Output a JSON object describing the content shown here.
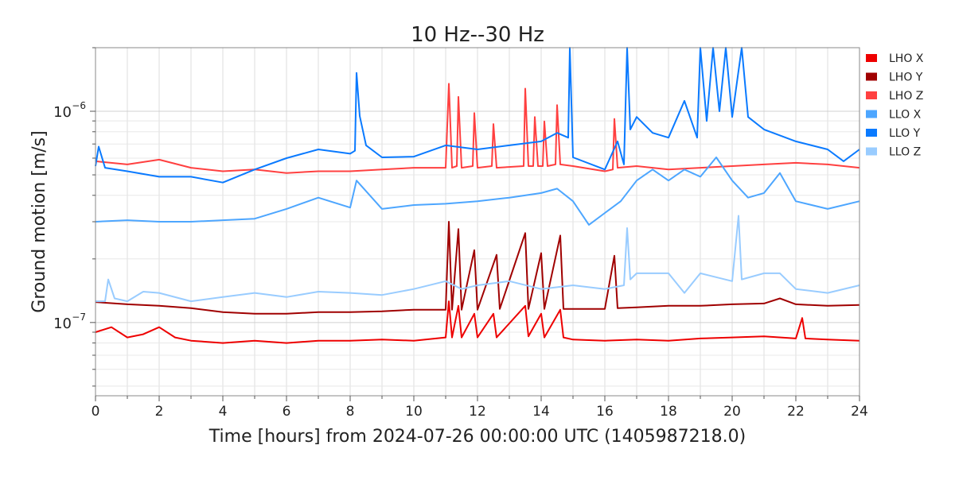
{
  "chart_data": {
    "type": "line",
    "title": "10 Hz--30 Hz",
    "xlabel": "Time [hours] from 2024-07-26 00:00:00 UTC (1405987218.0)",
    "ylabel": "Ground motion [m/s]",
    "xlim": [
      0,
      24
    ],
    "ylim": [
      4.5e-08,
      2e-06
    ],
    "yscale": "log",
    "grid": true,
    "legend_placement": "outside-right-top",
    "x_ticks": [
      "0",
      "2",
      "4",
      "6",
      "8",
      "10",
      "12",
      "14",
      "16",
      "18",
      "20",
      "22",
      "24"
    ],
    "y_ticks": [
      {
        "value": 1e-06,
        "base": "10",
        "exp": "−6"
      },
      {
        "value": 1e-07,
        "base": "10",
        "exp": "−7"
      }
    ],
    "values_unit_scale": 1e-07,
    "series": [
      {
        "name": "LHO X",
        "color": "#ee0000",
        "points": [
          [
            0,
            0.9
          ],
          [
            0.5,
            0.95
          ],
          [
            1,
            0.85
          ],
          [
            1.5,
            0.88
          ],
          [
            2,
            0.95
          ],
          [
            2.5,
            0.85
          ],
          [
            3,
            0.82
          ],
          [
            4,
            0.8
          ],
          [
            5,
            0.82
          ],
          [
            6,
            0.8
          ],
          [
            7,
            0.82
          ],
          [
            8,
            0.82
          ],
          [
            9,
            0.83
          ],
          [
            10,
            0.82
          ],
          [
            11,
            0.85
          ],
          [
            11.1,
            1.26
          ],
          [
            11.2,
            0.85
          ],
          [
            11.4,
            1.2
          ],
          [
            11.5,
            0.85
          ],
          [
            11.9,
            1.1
          ],
          [
            12,
            0.85
          ],
          [
            12.5,
            1.1
          ],
          [
            12.6,
            0.85
          ],
          [
            13.5,
            1.2
          ],
          [
            13.6,
            0.86
          ],
          [
            14.0,
            1.1
          ],
          [
            14.1,
            0.85
          ],
          [
            14.6,
            1.15
          ],
          [
            14.7,
            0.85
          ],
          [
            15,
            0.83
          ],
          [
            16,
            0.82
          ],
          [
            17,
            0.83
          ],
          [
            18,
            0.82
          ],
          [
            19,
            0.84
          ],
          [
            20,
            0.85
          ],
          [
            21,
            0.86
          ],
          [
            22,
            0.84
          ],
          [
            22.2,
            1.05
          ],
          [
            22.3,
            0.84
          ],
          [
            23,
            0.83
          ],
          [
            24,
            0.82
          ]
        ]
      },
      {
        "name": "LHO Y",
        "color": "#a00000",
        "points": [
          [
            0,
            1.25
          ],
          [
            1,
            1.22
          ],
          [
            2,
            1.2
          ],
          [
            3,
            1.17
          ],
          [
            4,
            1.12
          ],
          [
            5,
            1.1
          ],
          [
            6,
            1.1
          ],
          [
            7,
            1.12
          ],
          [
            8,
            1.12
          ],
          [
            9,
            1.13
          ],
          [
            10,
            1.15
          ],
          [
            11,
            1.15
          ],
          [
            11.1,
            3.0
          ],
          [
            11.2,
            1.15
          ],
          [
            11.4,
            2.77
          ],
          [
            11.5,
            1.15
          ],
          [
            11.9,
            2.2
          ],
          [
            12,
            1.15
          ],
          [
            12.6,
            2.09
          ],
          [
            12.7,
            1.16
          ],
          [
            13.5,
            2.65
          ],
          [
            13.6,
            1.16
          ],
          [
            14.0,
            2.13
          ],
          [
            14.1,
            1.16
          ],
          [
            14.6,
            2.58
          ],
          [
            14.7,
            1.16
          ],
          [
            15,
            1.16
          ],
          [
            16,
            1.16
          ],
          [
            16.3,
            2.07
          ],
          [
            16.4,
            1.17
          ],
          [
            17,
            1.18
          ],
          [
            18,
            1.2
          ],
          [
            19,
            1.2
          ],
          [
            20,
            1.22
          ],
          [
            21,
            1.23
          ],
          [
            21.5,
            1.3
          ],
          [
            22,
            1.22
          ],
          [
            23,
            1.2
          ],
          [
            24,
            1.21
          ]
        ]
      },
      {
        "name": "LHO Z",
        "color": "#ff4040",
        "points": [
          [
            0,
            5.8
          ],
          [
            1,
            5.6
          ],
          [
            2,
            5.9
          ],
          [
            3,
            5.4
          ],
          [
            4,
            5.2
          ],
          [
            5,
            5.3
          ],
          [
            6,
            5.1
          ],
          [
            7,
            5.2
          ],
          [
            8,
            5.2
          ],
          [
            9,
            5.3
          ],
          [
            10,
            5.4
          ],
          [
            11.0,
            5.4
          ],
          [
            11.1,
            13.5
          ],
          [
            11.2,
            5.4
          ],
          [
            11.35,
            5.5
          ],
          [
            11.4,
            11.7
          ],
          [
            11.5,
            5.4
          ],
          [
            11.85,
            5.5
          ],
          [
            11.9,
            9.8
          ],
          [
            12.0,
            5.4
          ],
          [
            12.45,
            5.5
          ],
          [
            12.5,
            8.7
          ],
          [
            12.6,
            5.4
          ],
          [
            13.45,
            5.5
          ],
          [
            13.5,
            12.8
          ],
          [
            13.6,
            5.5
          ],
          [
            13.75,
            5.5
          ],
          [
            13.8,
            9.4
          ],
          [
            13.9,
            5.5
          ],
          [
            14.05,
            5.5
          ],
          [
            14.1,
            8.95
          ],
          [
            14.2,
            5.5
          ],
          [
            14.45,
            5.6
          ],
          [
            14.5,
            10.7
          ],
          [
            14.6,
            5.6
          ],
          [
            15,
            5.5
          ],
          [
            16,
            5.2
          ],
          [
            16.25,
            5.3
          ],
          [
            16.3,
            9.2
          ],
          [
            16.4,
            5.4
          ],
          [
            17,
            5.5
          ],
          [
            18,
            5.3
          ],
          [
            19,
            5.4
          ],
          [
            20,
            5.5
          ],
          [
            21,
            5.6
          ],
          [
            22,
            5.7
          ],
          [
            23,
            5.6
          ],
          [
            24,
            5.4
          ]
        ]
      },
      {
        "name": "LLO X",
        "color": "#4da6ff",
        "points": [
          [
            0,
            3.0
          ],
          [
            1,
            3.05
          ],
          [
            2,
            3.0
          ],
          [
            3,
            3.0
          ],
          [
            4,
            3.05
          ],
          [
            5,
            3.1
          ],
          [
            6,
            3.45
          ],
          [
            7,
            3.9
          ],
          [
            8,
            3.5
          ],
          [
            8.2,
            4.7
          ],
          [
            9,
            3.45
          ],
          [
            10,
            3.6
          ],
          [
            11,
            3.65
          ],
          [
            12,
            3.75
          ],
          [
            13,
            3.9
          ],
          [
            14,
            4.1
          ],
          [
            14.5,
            4.3
          ],
          [
            15,
            3.75
          ],
          [
            15.5,
            2.9
          ],
          [
            16,
            3.3
          ],
          [
            16.5,
            3.75
          ],
          [
            17,
            4.7
          ],
          [
            17.5,
            5.3
          ],
          [
            18,
            4.7
          ],
          [
            18.5,
            5.3
          ],
          [
            19,
            4.9
          ],
          [
            19.5,
            6.05
          ],
          [
            20,
            4.7
          ],
          [
            20.5,
            3.9
          ],
          [
            21,
            4.1
          ],
          [
            21.5,
            5.1
          ],
          [
            22,
            3.75
          ],
          [
            23,
            3.45
          ],
          [
            24,
            3.75
          ]
        ]
      },
      {
        "name": "LLO Y",
        "color": "#0a7aff",
        "points": [
          [
            0,
            5.5
          ],
          [
            0.1,
            6.8
          ],
          [
            0.3,
            5.4
          ],
          [
            1,
            5.2
          ],
          [
            2,
            4.9
          ],
          [
            3,
            4.9
          ],
          [
            4,
            4.6
          ],
          [
            5,
            5.3
          ],
          [
            6,
            6.0
          ],
          [
            7,
            6.6
          ],
          [
            8,
            6.3
          ],
          [
            8.15,
            6.5
          ],
          [
            8.2,
            15.2
          ],
          [
            8.3,
            9.5
          ],
          [
            8.5,
            6.9
          ],
          [
            9,
            6.05
          ],
          [
            10,
            6.1
          ],
          [
            11,
            6.9
          ],
          [
            12,
            6.6
          ],
          [
            13,
            6.9
          ],
          [
            14,
            7.2
          ],
          [
            14.5,
            7.9
          ],
          [
            14.85,
            7.5
          ],
          [
            14.9,
            20.6
          ],
          [
            15,
            6.05
          ],
          [
            16,
            5.3
          ],
          [
            16.4,
            7.2
          ],
          [
            16.6,
            5.6
          ],
          [
            16.7,
            20.6
          ],
          [
            16.8,
            8.2
          ],
          [
            17,
            9.4
          ],
          [
            17.5,
            7.9
          ],
          [
            18,
            7.5
          ],
          [
            18.5,
            11.2
          ],
          [
            18.9,
            7.5
          ],
          [
            19,
            20.6
          ],
          [
            19.2,
            9
          ],
          [
            19.4,
            20.6
          ],
          [
            19.6,
            10
          ],
          [
            19.8,
            20.6
          ],
          [
            20,
            9.4
          ],
          [
            20.3,
            20.6
          ],
          [
            20.5,
            9.4
          ],
          [
            21,
            8.2
          ],
          [
            22,
            7.2
          ],
          [
            23,
            6.6
          ],
          [
            23.5,
            5.8
          ],
          [
            24,
            6.6
          ]
        ]
      },
      {
        "name": "LLO Z",
        "color": "#99ccff",
        "points": [
          [
            0,
            1.26
          ],
          [
            0.3,
            1.26
          ],
          [
            0.4,
            1.6
          ],
          [
            0.6,
            1.3
          ],
          [
            1,
            1.26
          ],
          [
            1.5,
            1.4
          ],
          [
            2,
            1.38
          ],
          [
            3,
            1.26
          ],
          [
            4,
            1.32
          ],
          [
            5,
            1.38
          ],
          [
            6,
            1.32
          ],
          [
            7,
            1.4
          ],
          [
            8,
            1.38
          ],
          [
            9,
            1.35
          ],
          [
            10,
            1.44
          ],
          [
            11,
            1.57
          ],
          [
            11.5,
            1.44
          ],
          [
            12,
            1.5
          ],
          [
            13,
            1.57
          ],
          [
            14,
            1.44
          ],
          [
            15,
            1.5
          ],
          [
            16,
            1.44
          ],
          [
            16.6,
            1.5
          ],
          [
            16.7,
            2.8
          ],
          [
            16.8,
            1.6
          ],
          [
            17,
            1.71
          ],
          [
            18,
            1.71
          ],
          [
            18.5,
            1.38
          ],
          [
            19,
            1.71
          ],
          [
            20,
            1.57
          ],
          [
            20.2,
            3.2
          ],
          [
            20.3,
            1.6
          ],
          [
            21,
            1.71
          ],
          [
            21.5,
            1.71
          ],
          [
            22,
            1.44
          ],
          [
            23,
            1.38
          ],
          [
            24,
            1.5
          ]
        ]
      }
    ]
  }
}
